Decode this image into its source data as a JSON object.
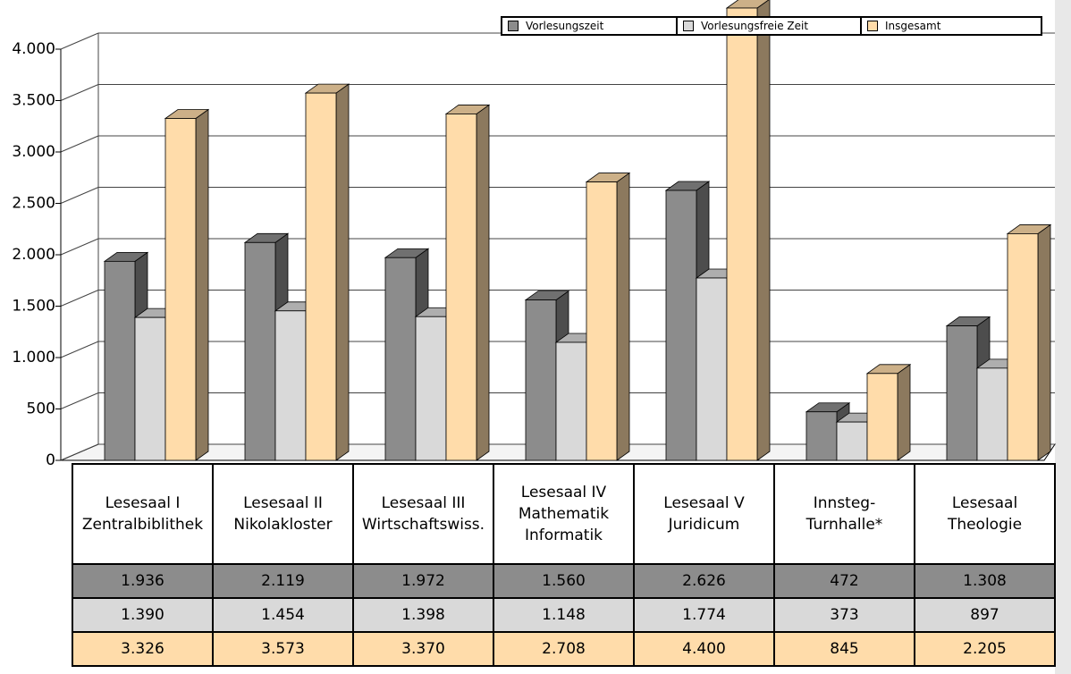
{
  "chart_data": {
    "type": "bar3d",
    "categories": [
      "Lesesaal I\nZentralbiblithek",
      "Lesesaal II\nNikolakloster",
      "Lesesaal III\nWirtschaftswiss.",
      "Lesesaal IV\nMathematik\nInformatik",
      "Lesesaal V\nJuridicum",
      "Innsteg-\nTurnhalle*",
      "Lesesaal\nTheologie"
    ],
    "series": [
      {
        "name": "Vorlesungszeit",
        "color": "#8c8c8c",
        "values": [
          1936,
          2119,
          1972,
          1560,
          2626,
          472,
          1308
        ],
        "value_labels": [
          "1.936",
          "2.119",
          "1.972",
          "1.560",
          "2.626",
          "472",
          "1.308"
        ]
      },
      {
        "name": "Vorlesungsfreie Zeit",
        "color": "#d9d9d9",
        "values": [
          1390,
          1454,
          1398,
          1148,
          1774,
          373,
          897
        ],
        "value_labels": [
          "1.390",
          "1.454",
          "1.398",
          "1.148",
          "1.774",
          "373",
          "897"
        ]
      },
      {
        "name": "Insgesamt",
        "color": "#ffdcaa",
        "values": [
          3326,
          3573,
          3370,
          2708,
          4400,
          845,
          2205
        ],
        "value_labels": [
          "3.326",
          "3.573",
          "3.370",
          "2.708",
          "4.400",
          "845",
          "2.205"
        ]
      }
    ],
    "ylim": [
      0,
      4000
    ],
    "yticks": [
      0,
      500,
      {
        "value": 1000,
        "label": "1.000"
      },
      {
        "value": 1500,
        "label": "1.500"
      },
      {
        "value": 2000,
        "label": "2.000"
      },
      {
        "value": 2500,
        "label": "2.500"
      },
      {
        "value": 3000,
        "label": "3.000"
      },
      {
        "value": 3500,
        "label": "3.500"
      },
      {
        "value": 4000,
        "label": "4.000"
      }
    ],
    "grid": true
  }
}
